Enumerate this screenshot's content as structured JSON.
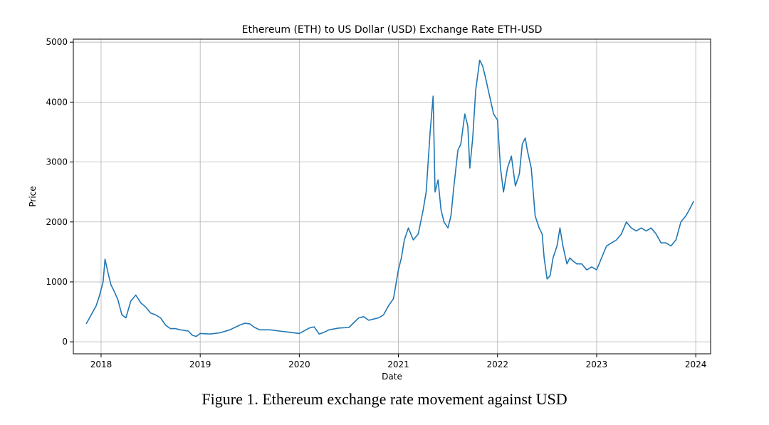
{
  "chart_data": {
    "type": "line",
    "title": "Ethereum (ETH) to US Dollar (USD) Exchange Rate ETH-USD",
    "xlabel": "Date",
    "ylabel": "Price",
    "xlim": [
      2017.72,
      2024.15
    ],
    "ylim": [
      -200,
      5050
    ],
    "x_ticks": [
      2018,
      2019,
      2020,
      2021,
      2022,
      2023,
      2024
    ],
    "x_tick_labels": [
      "2018",
      "2019",
      "2020",
      "2021",
      "2022",
      "2023",
      "2024"
    ],
    "y_ticks": [
      0,
      1000,
      2000,
      3000,
      4000,
      5000
    ],
    "y_tick_labels": [
      "0",
      "1000",
      "2000",
      "3000",
      "4000",
      "5000"
    ],
    "grid": true,
    "color": "#1f77b4",
    "series": [
      {
        "name": "ETH-USD",
        "x": [
          2017.85,
          2017.9,
          2017.95,
          2017.98,
          2018.02,
          2018.04,
          2018.07,
          2018.1,
          2018.13,
          2018.17,
          2018.21,
          2018.25,
          2018.3,
          2018.35,
          2018.4,
          2018.45,
          2018.5,
          2018.55,
          2018.6,
          2018.65,
          2018.7,
          2018.75,
          2018.8,
          2018.88,
          2018.92,
          2018.96,
          2019.0,
          2019.1,
          2019.2,
          2019.3,
          2019.4,
          2019.45,
          2019.5,
          2019.55,
          2019.6,
          2019.7,
          2019.8,
          2019.9,
          2020.0,
          2020.1,
          2020.15,
          2020.2,
          2020.25,
          2020.3,
          2020.4,
          2020.5,
          2020.6,
          2020.65,
          2020.7,
          2020.75,
          2020.8,
          2020.85,
          2020.9,
          2020.95,
          2021.0,
          2021.03,
          2021.06,
          2021.1,
          2021.15,
          2021.2,
          2021.25,
          2021.28,
          2021.32,
          2021.35,
          2021.37,
          2021.4,
          2021.43,
          2021.46,
          2021.5,
          2021.53,
          2021.56,
          2021.6,
          2021.63,
          2021.67,
          2021.7,
          2021.72,
          2021.75,
          2021.78,
          2021.82,
          2021.85,
          2021.88,
          2021.92,
          2021.96,
          2022.0,
          2022.03,
          2022.06,
          2022.1,
          2022.14,
          2022.18,
          2022.22,
          2022.25,
          2022.28,
          2022.3,
          2022.34,
          2022.38,
          2022.42,
          2022.45,
          2022.47,
          2022.5,
          2022.53,
          2022.56,
          2022.6,
          2022.63,
          2022.66,
          2022.7,
          2022.73,
          2022.76,
          2022.8,
          2022.85,
          2022.9,
          2022.95,
          2023.0,
          2023.05,
          2023.1,
          2023.15,
          2023.2,
          2023.25,
          2023.3,
          2023.35,
          2023.4,
          2023.45,
          2023.5,
          2023.55,
          2023.6,
          2023.65,
          2023.7,
          2023.75,
          2023.8,
          2023.85,
          2023.9,
          2023.95,
          2023.98
        ],
        "y": [
          300,
          450,
          600,
          750,
          1000,
          1380,
          1150,
          950,
          850,
          700,
          450,
          400,
          680,
          780,
          650,
          580,
          480,
          450,
          400,
          280,
          220,
          220,
          200,
          180,
          110,
          90,
          140,
          130,
          150,
          200,
          280,
          310,
          300,
          240,
          200,
          200,
          180,
          160,
          140,
          230,
          250,
          130,
          160,
          200,
          230,
          240,
          400,
          420,
          360,
          380,
          400,
          450,
          600,
          720,
          1200,
          1400,
          1700,
          1900,
          1700,
          1800,
          2200,
          2500,
          3500,
          4100,
          2500,
          2700,
          2200,
          2000,
          1900,
          2100,
          2600,
          3200,
          3300,
          3800,
          3600,
          2900,
          3400,
          4200,
          4700,
          4600,
          4400,
          4100,
          3800,
          3700,
          2900,
          2500,
          2900,
          3100,
          2600,
          2800,
          3300,
          3400,
          3200,
          2900,
          2100,
          1900,
          1800,
          1400,
          1050,
          1100,
          1400,
          1600,
          1900,
          1600,
          1300,
          1400,
          1350,
          1300,
          1300,
          1200,
          1250,
          1200,
          1400,
          1600,
          1650,
          1700,
          1800,
          2000,
          1900,
          1850,
          1900,
          1850,
          1900,
          1800,
          1650,
          1650,
          1600,
          1700,
          2000,
          2100,
          2250,
          2350
        ]
      }
    ]
  },
  "caption": "Figure 1. Ethereum exchange rate movement against USD"
}
